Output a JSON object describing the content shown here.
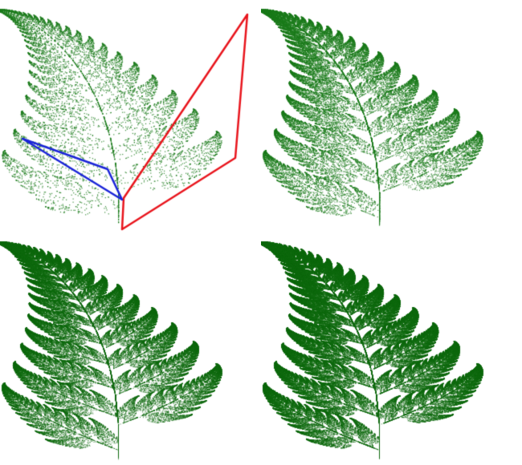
{
  "figure": {
    "subject": "barnsley-fern",
    "panel_count": 4,
    "background": "#ffffff"
  },
  "colors": {
    "fern_green": "#1a7a1a",
    "fern_dark": "#0f6a0f",
    "outline_red": "#e8141c",
    "outline_blue": "#1a24d8"
  },
  "panels": [
    {
      "id": "top-left",
      "point_density": "sparse",
      "has_outlines": true
    },
    {
      "id": "top-right",
      "point_density": "medium",
      "has_outlines": false
    },
    {
      "id": "bottom-left",
      "point_density": "dense",
      "has_outlines": false
    },
    {
      "id": "bottom-right",
      "point_density": "very-dense",
      "has_outlines": false
    }
  ]
}
